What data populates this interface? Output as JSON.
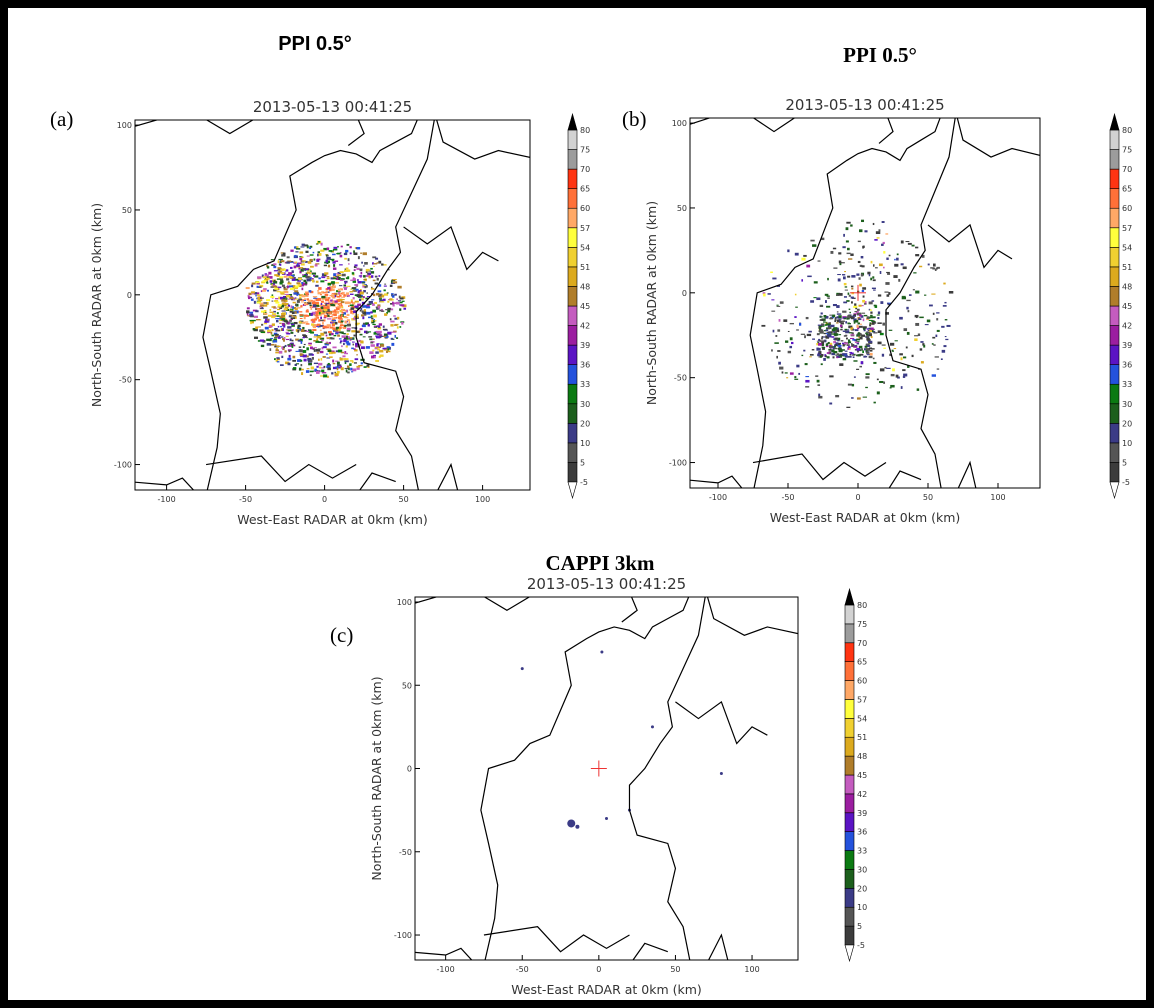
{
  "panels": [
    {
      "header": "PPI 0.5°",
      "label": "(a)",
      "timestamp": "2013-05-13 00:41:25",
      "x_label": "West-East RADAR at 0km (km)",
      "y_label": "North-South RADAR at 0km (km)",
      "xlim": [
        -120,
        130
      ],
      "ylim": [
        -115,
        103
      ],
      "xticks": [
        -100,
        -50,
        0,
        50,
        100
      ],
      "yticks": [
        -100,
        -50,
        0,
        50,
        100
      ]
    },
    {
      "header": "PPI 0.5°",
      "label": "(b)",
      "timestamp": "2013-05-13 00:41:25",
      "x_label": "West-East RADAR at 0km (km)",
      "y_label": "North-South RADAR at 0km (km)",
      "xlim": [
        -120,
        130
      ],
      "ylim": [
        -115,
        103
      ],
      "xticks": [
        -100,
        -50,
        0,
        50,
        100
      ],
      "yticks": [
        -100,
        -50,
        0,
        50,
        100
      ]
    },
    {
      "header": "CAPPI 3km",
      "label": "(c)",
      "timestamp": "2013-05-13 00:41:25",
      "x_label": "West-East RADAR at 0km (km)",
      "y_label": "North-South RADAR at 0km (km)",
      "xlim": [
        -120,
        130
      ],
      "ylim": [
        -115,
        103
      ],
      "xticks": [
        -100,
        -50,
        0,
        50,
        100
      ],
      "yticks": [
        -100,
        -50,
        0,
        50,
        100
      ]
    }
  ],
  "colorbar": {
    "levels": [
      -5,
      5,
      10,
      20,
      30,
      33,
      36,
      39,
      42,
      45,
      48,
      51,
      54,
      57,
      60,
      65,
      70,
      75,
      80
    ],
    "colors": [
      "#3c3c3c",
      "#555555",
      "#3b3b86",
      "#1c5f1c",
      "#0b7a12",
      "#2452dc",
      "#5b14c4",
      "#9b1ea0",
      "#c45cbf",
      "#b07d2a",
      "#dcaa1e",
      "#f0d030",
      "#ffff3c",
      "#ffa866",
      "#ff7038",
      "#ff3412",
      "#9c9c9c",
      "#d2d2d2"
    ],
    "under": "#ffffff",
    "over": "#000000"
  }
}
